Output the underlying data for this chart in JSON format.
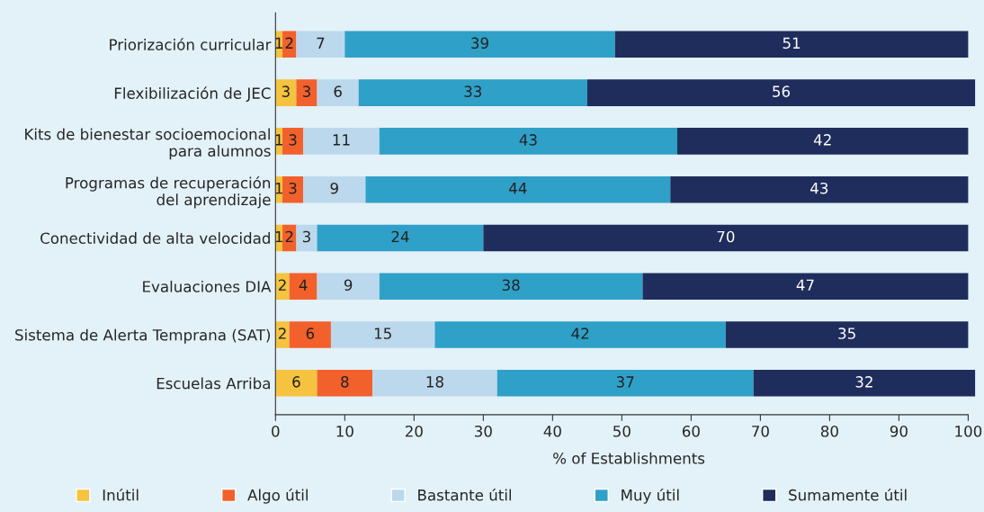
{
  "chart_data": {
    "type": "bar",
    "orientation": "horizontal",
    "stacked": true,
    "xlabel": "% of Establishments",
    "categories": [
      "Priorización curricular",
      "Flexibilización de JEC",
      "Kits de bienestar socioemocional\npara alumnos",
      "Programas de recuperación\ndel aprendizaje",
      "Conectividad de alta velocidad",
      "Evaluaciones DIA",
      "Sistema de Alerta Temprana (SAT)",
      "Escuelas Arriba"
    ],
    "series": [
      {
        "name": "Inútil",
        "color": "#f5c33f",
        "values": [
          1,
          3,
          1,
          1,
          1,
          2,
          2,
          6
        ]
      },
      {
        "name": "Algo útil",
        "color": "#f2612c",
        "values": [
          2,
          3,
          3,
          3,
          2,
          4,
          6,
          8
        ]
      },
      {
        "name": "Bastante útil",
        "color": "#bcd8ec",
        "values": [
          7,
          6,
          11,
          9,
          3,
          9,
          15,
          18
        ]
      },
      {
        "name": "Muy útil",
        "color": "#2fa0c8",
        "values": [
          39,
          33,
          43,
          44,
          24,
          38,
          42,
          37
        ]
      },
      {
        "name": "Sumamente útil",
        "color": "#1f2d5c",
        "values": [
          51,
          56,
          42,
          43,
          70,
          47,
          35,
          32
        ]
      }
    ],
    "xlim": [
      0,
      102
    ],
    "xticks": [
      0,
      10,
      20,
      30,
      40,
      50,
      60,
      70,
      80,
      90,
      100
    ],
    "data_labels": true,
    "grid": false,
    "legend": "bottom"
  }
}
